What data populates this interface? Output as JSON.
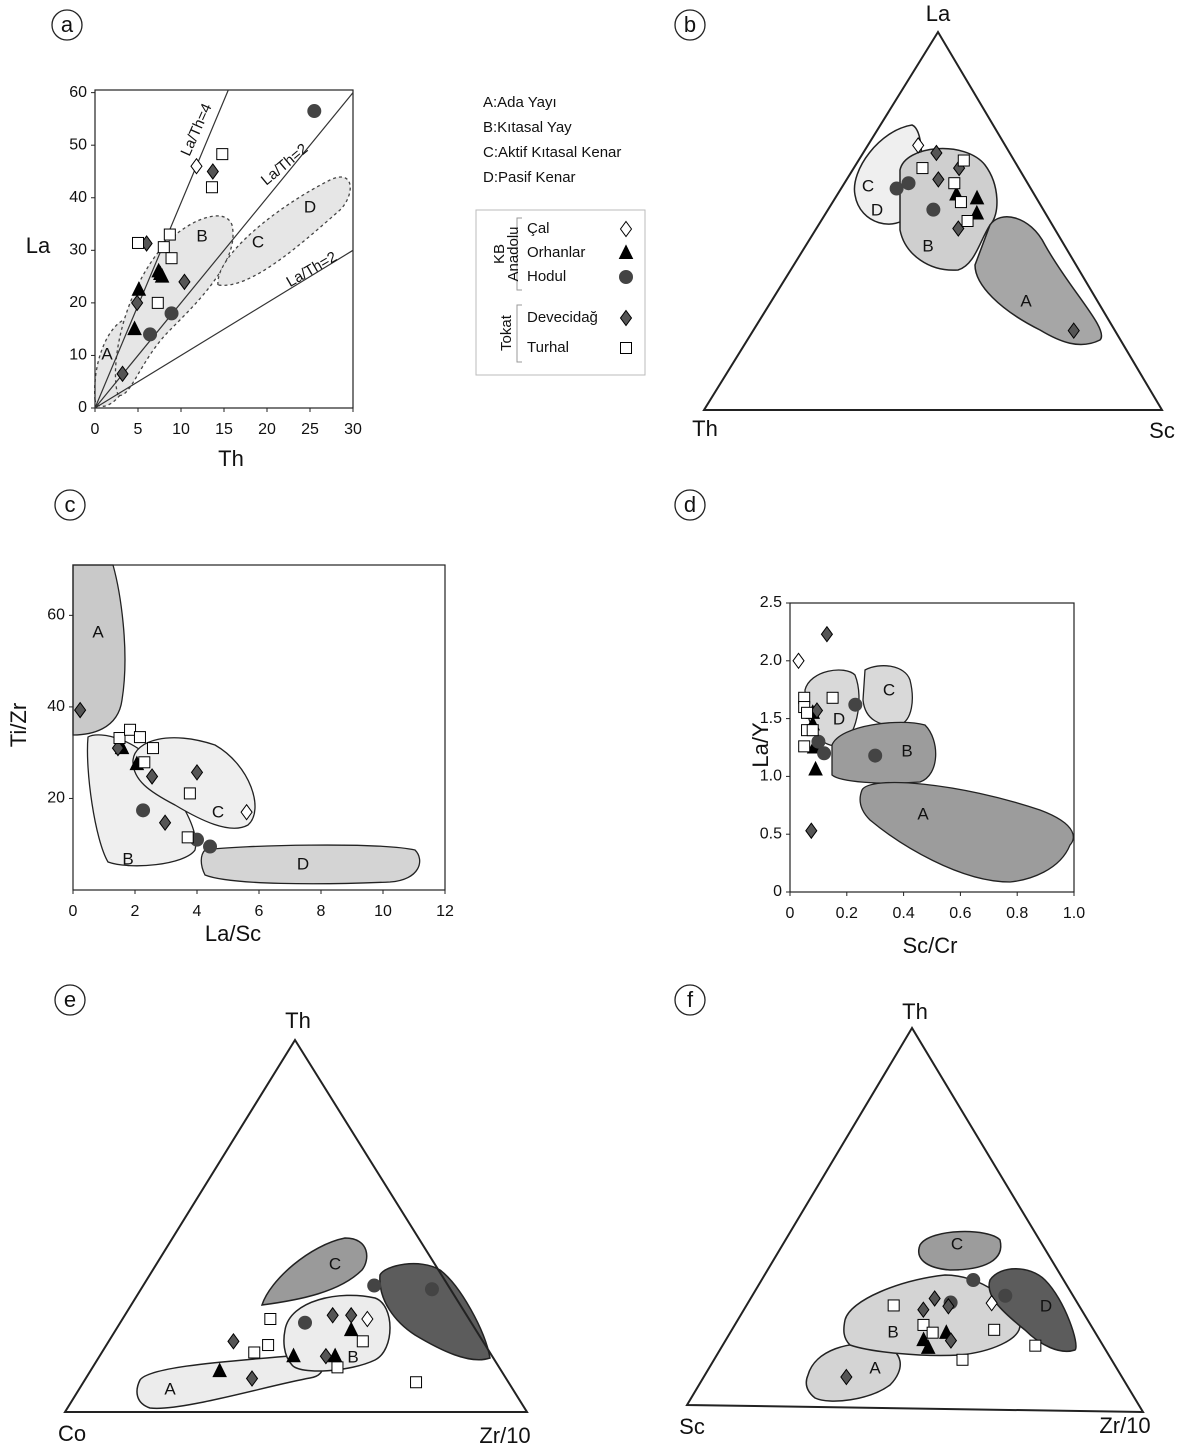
{
  "legend": {
    "fields": [
      "A:Ada Yayı",
      "B:Kıtasal Yay",
      "C:Aktif Kıtasal Kenar",
      "D:Pasif Kenar"
    ],
    "groups": [
      {
        "label_lines": [
          "KB",
          "Anadolu"
        ],
        "items": [
          {
            "name": "Çal",
            "marker": "diamond",
            "color": "#ffffff"
          },
          {
            "name": "Orhanlar",
            "marker": "triangle",
            "color": "#000000"
          },
          {
            "name": "Hodul",
            "marker": "circle",
            "color": "#444444"
          }
        ]
      },
      {
        "label_lines": [
          "Tokat"
        ],
        "items": [
          {
            "name": "Devecidağ",
            "marker": "diamond",
            "color": "#555555"
          },
          {
            "name": "Turhal",
            "marker": "square",
            "color": "#ffffff"
          }
        ]
      }
    ]
  },
  "chart_data": [
    {
      "type": "scatter",
      "panel": "a",
      "xlabel": "Th",
      "ylabel": "La",
      "xlim": [
        0,
        30
      ],
      "ylim": [
        0,
        60.5
      ],
      "xticks": [
        0,
        5,
        10,
        15,
        20,
        25,
        30
      ],
      "yticks": [
        0,
        10,
        20,
        30,
        40,
        50,
        60
      ],
      "fields": [
        "A",
        "B",
        "C",
        "D"
      ],
      "lines": [
        {
          "label": "La/Th=4",
          "end": [
            15.5,
            60.5
          ]
        },
        {
          "label": "La/Th=2",
          "end": [
            30,
            60
          ]
        },
        {
          "label": "La/Th=2",
          "end": [
            30,
            30
          ]
        }
      ],
      "series": [
        {
          "x": [
            11.8
          ],
          "y": [
            46
          ]
        },
        {
          "x": [
            5.1,
            7.4,
            7.8,
            4.6,
            7.6
          ],
          "y": [
            22.5,
            26,
            25,
            15,
            25.5
          ]
        },
        {
          "x": [
            25.5,
            8.9,
            6.4
          ],
          "y": [
            56.5,
            18,
            14
          ]
        },
        {
          "x": [
            6,
            13.7,
            10.4,
            4.9,
            3.2
          ],
          "y": [
            31.3,
            45,
            24,
            20,
            6.5
          ]
        },
        {
          "x": [
            14.8,
            13.6,
            8.7,
            8,
            5,
            8.9,
            7.3
          ],
          "y": [
            48.3,
            42,
            33,
            30.6,
            31.4,
            28.5,
            20
          ]
        }
      ]
    },
    {
      "type": "ternary",
      "panel": "b",
      "vertices": [
        "La",
        "Th",
        "Sc"
      ],
      "fields": [
        "C",
        "D",
        "B",
        "A"
      ],
      "series": [
        {
          "a": [
            70
          ],
          "b": [
            19
          ],
          "c": [
            11
          ]
        },
        {
          "a": [
            57,
            56,
            52
          ],
          "b": [
            17,
            13,
            15
          ],
          "c": [
            26,
            31,
            33
          ]
        },
        {
          "a": [
            58,
            60,
            53
          ],
          "b": [
            29,
            26,
            24
          ],
          "c": [
            12,
            14,
            23
          ]
        },
        {
          "a": [
            68,
            61,
            64,
            48,
            21
          ],
          "b": [
            16,
            19,
            13,
            21,
            9
          ],
          "c": [
            16,
            20,
            23,
            31,
            70
          ]
        },
        {
          "a": [
            64,
            66,
            60,
            55,
            50
          ],
          "b": [
            21,
            11,
            16,
            17,
            18
          ],
          "c": [
            15,
            23,
            24,
            28,
            32
          ]
        }
      ]
    },
    {
      "type": "scatter",
      "panel": "c",
      "xlabel": "La/Sc",
      "ylabel": "Ti/Zr",
      "xlim": [
        0,
        12
      ],
      "ylim": [
        0,
        71
      ],
      "xticks": [
        0,
        2,
        4,
        6,
        8,
        10,
        12
      ],
      "yticks": [
        20,
        40,
        60
      ],
      "fields": [
        "A",
        "B",
        "C",
        "D"
      ],
      "series": [
        {
          "x": [
            5.6
          ],
          "y": [
            17
          ]
        },
        {
          "x": [
            1.58,
            2.06
          ],
          "y": [
            31,
            27.5
          ]
        },
        {
          "x": [
            2.26,
            4.0,
            4.42
          ],
          "y": [
            17.4,
            11,
            9.5
          ]
        },
        {
          "x": [
            0.23,
            1.45,
            2.55,
            2.97,
            4.0
          ],
          "y": [
            39.3,
            31,
            24.8,
            14.7,
            25.7
          ]
        },
        {
          "x": [
            1.5,
            1.84,
            2.16,
            2.3,
            2.58,
            3.77,
            3.7
          ],
          "y": [
            33.2,
            35,
            33.4,
            27.9,
            31,
            21.1,
            11.5
          ]
        }
      ]
    },
    {
      "type": "scatter",
      "panel": "d",
      "xlabel": "Sc/Cr",
      "ylabel": "La/Y",
      "xlim": [
        0,
        1
      ],
      "ylim": [
        0,
        2.5
      ],
      "xticks": [
        0,
        0.2,
        0.4,
        0.6,
        0.8,
        {
          "value": 1,
          "label": "1.0"
        }
      ],
      "yticks": [
        0,
        0.5,
        {
          "value": 1,
          "label": "1.0"
        },
        1.5,
        {
          "value": 2,
          "label": "2.0"
        },
        2.5
      ],
      "fields": [
        "D",
        "C",
        "B",
        "A"
      ],
      "series": [
        {
          "x": [
            0.03
          ],
          "y": [
            2.0
          ]
        },
        {
          "x": [
            0.08,
            0.085,
            0.09,
            0.08
          ],
          "y": [
            1.45,
            1.25,
            1.06,
            1.55
          ]
        },
        {
          "x": [
            0.12,
            0.23,
            0.3,
            0.1
          ],
          "y": [
            1.2,
            1.62,
            1.18,
            1.3
          ]
        },
        {
          "x": [
            0.13,
            0.095,
            0.075
          ],
          "y": [
            2.23,
            1.57,
            0.53
          ]
        },
        {
          "x": [
            0.05,
            0.05,
            0.06,
            0.06,
            0.05,
            0.08,
            0.15
          ],
          "y": [
            1.68,
            1.6,
            1.55,
            1.4,
            1.26,
            1.4,
            1.68
          ]
        }
      ]
    },
    {
      "type": "ternary",
      "panel": "e",
      "vertices": [
        "Th",
        "Co",
        "Zr/10"
      ],
      "fields": [
        "A",
        "B",
        "C"
      ],
      "series": [
        {
          "a": [
            25
          ],
          "b": [
            22
          ],
          "c": [
            53
          ]
        },
        {
          "a": [
            11,
            15,
            15,
            22
          ],
          "b": [
            61,
            43,
            34,
            27
          ],
          "c": [
            28,
            42,
            51,
            51
          ]
        },
        {
          "a": [
            24,
            34,
            33
          ],
          "b": [
            36,
            16,
            4
          ],
          "c": [
            40,
            50,
            63
          ]
        },
        {
          "a": [
            19,
            9,
            26,
            26,
            15
          ],
          "b": [
            54,
            55,
            29,
            25,
            36
          ],
          "c": [
            27,
            36,
            45,
            49,
            49
          ]
        },
        {
          "a": [
            16,
            18,
            25,
            12,
            19,
            8
          ],
          "b": [
            51,
            47,
            43,
            35,
            26,
            20
          ],
          "c": [
            33,
            35,
            32,
            53,
            55,
            72
          ]
        }
      ]
    },
    {
      "type": "ternary",
      "panel": "f",
      "vertices": [
        "Th",
        "Sc",
        "Zr/10"
      ],
      "fields": [
        "A",
        "B",
        "C",
        "D"
      ],
      "series": [
        {
          "a": [
            28
          ],
          "b": [
            19
          ],
          "c": [
            53
          ]
        },
        {
          "a": [
            18,
            16,
            20
          ],
          "b": [
            39,
            39,
            33
          ],
          "c": [
            43,
            45,
            47
          ]
        },
        {
          "a": [
            28,
            34,
            30
          ],
          "b": [
            28,
            20,
            15
          ],
          "c": [
            44,
            46,
            55
          ]
        },
        {
          "a": [
            8,
            26,
            29,
            27,
            18
          ],
          "b": [
            61,
            35,
            31,
            29,
            33
          ],
          "c": [
            31,
            39,
            40,
            44,
            49
          ]
        },
        {
          "a": [
            27,
            22,
            20,
            13,
            21,
            17
          ],
          "b": [
            41,
            37,
            36,
            33,
            22,
            15
          ],
          "c": [
            32,
            41,
            44,
            54,
            57,
            68
          ]
        }
      ]
    }
  ]
}
